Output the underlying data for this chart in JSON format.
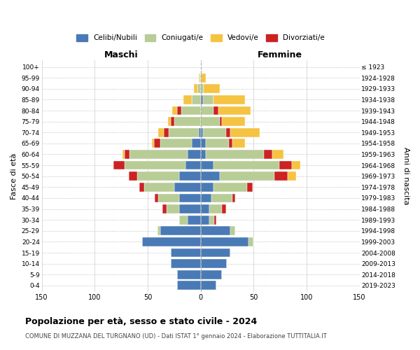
{
  "age_groups": [
    "0-4",
    "5-9",
    "10-14",
    "15-19",
    "20-24",
    "25-29",
    "30-34",
    "35-39",
    "40-44",
    "45-49",
    "50-54",
    "55-59",
    "60-64",
    "65-69",
    "70-74",
    "75-79",
    "80-84",
    "85-89",
    "90-94",
    "95-99",
    "100+"
  ],
  "birth_years": [
    "2019-2023",
    "2014-2018",
    "2009-2013",
    "2004-2008",
    "1999-2003",
    "1994-1998",
    "1989-1993",
    "1984-1988",
    "1979-1983",
    "1974-1978",
    "1969-1973",
    "1964-1968",
    "1959-1963",
    "1954-1958",
    "1949-1953",
    "1944-1948",
    "1939-1943",
    "1934-1938",
    "1929-1933",
    "1924-1928",
    "≤ 1923"
  ],
  "maschi": {
    "celibi": [
      22,
      22,
      28,
      28,
      55,
      38,
      12,
      20,
      20,
      25,
      20,
      14,
      12,
      8,
      2,
      0,
      0,
      0,
      0,
      0,
      0
    ],
    "coniugati": [
      0,
      0,
      0,
      0,
      0,
      3,
      8,
      12,
      20,
      28,
      40,
      58,
      55,
      30,
      28,
      25,
      18,
      8,
      3,
      1,
      0
    ],
    "vedovi": [
      0,
      0,
      0,
      0,
      0,
      0,
      0,
      0,
      0,
      0,
      0,
      0,
      2,
      2,
      5,
      3,
      5,
      8,
      3,
      1,
      0
    ],
    "divorziati": [
      0,
      0,
      0,
      0,
      0,
      0,
      0,
      4,
      3,
      5,
      8,
      10,
      5,
      6,
      5,
      3,
      4,
      0,
      0,
      0,
      0
    ]
  },
  "femmine": {
    "nubili": [
      15,
      20,
      25,
      28,
      45,
      28,
      8,
      8,
      10,
      12,
      18,
      12,
      5,
      5,
      2,
      0,
      0,
      2,
      0,
      0,
      0
    ],
    "coniugate": [
      0,
      0,
      0,
      0,
      5,
      5,
      5,
      12,
      20,
      32,
      52,
      62,
      55,
      22,
      22,
      18,
      12,
      10,
      3,
      0,
      0
    ],
    "vedove": [
      0,
      0,
      0,
      0,
      0,
      0,
      0,
      0,
      0,
      0,
      8,
      8,
      10,
      12,
      28,
      22,
      30,
      30,
      15,
      5,
      0
    ],
    "divorziate": [
      0,
      0,
      0,
      0,
      0,
      0,
      2,
      4,
      3,
      5,
      12,
      12,
      8,
      3,
      4,
      2,
      5,
      0,
      0,
      0,
      0
    ]
  },
  "colors": {
    "celibi_nubili": "#4a7ab5",
    "coniugati_e": "#b8cc96",
    "vedovi_e": "#f5c342",
    "divorziati_e": "#cc2222"
  },
  "title": "Popolazione per età, sesso e stato civile - 2024",
  "subtitle": "COMUNE DI MUZZANA DEL TURGNANO (UD) - Dati ISTAT 1° gennaio 2024 - Elaborazione TUTTITALIA.IT",
  "xlabel_left": "Maschi",
  "xlabel_right": "Femmine",
  "ylabel_left": "Fasce di età",
  "ylabel_right": "Anni di nascita",
  "xlim": 150,
  "legend_labels": [
    "Celibi/Nubili",
    "Coniugati/e",
    "Vedovi/e",
    "Divorziati/e"
  ]
}
